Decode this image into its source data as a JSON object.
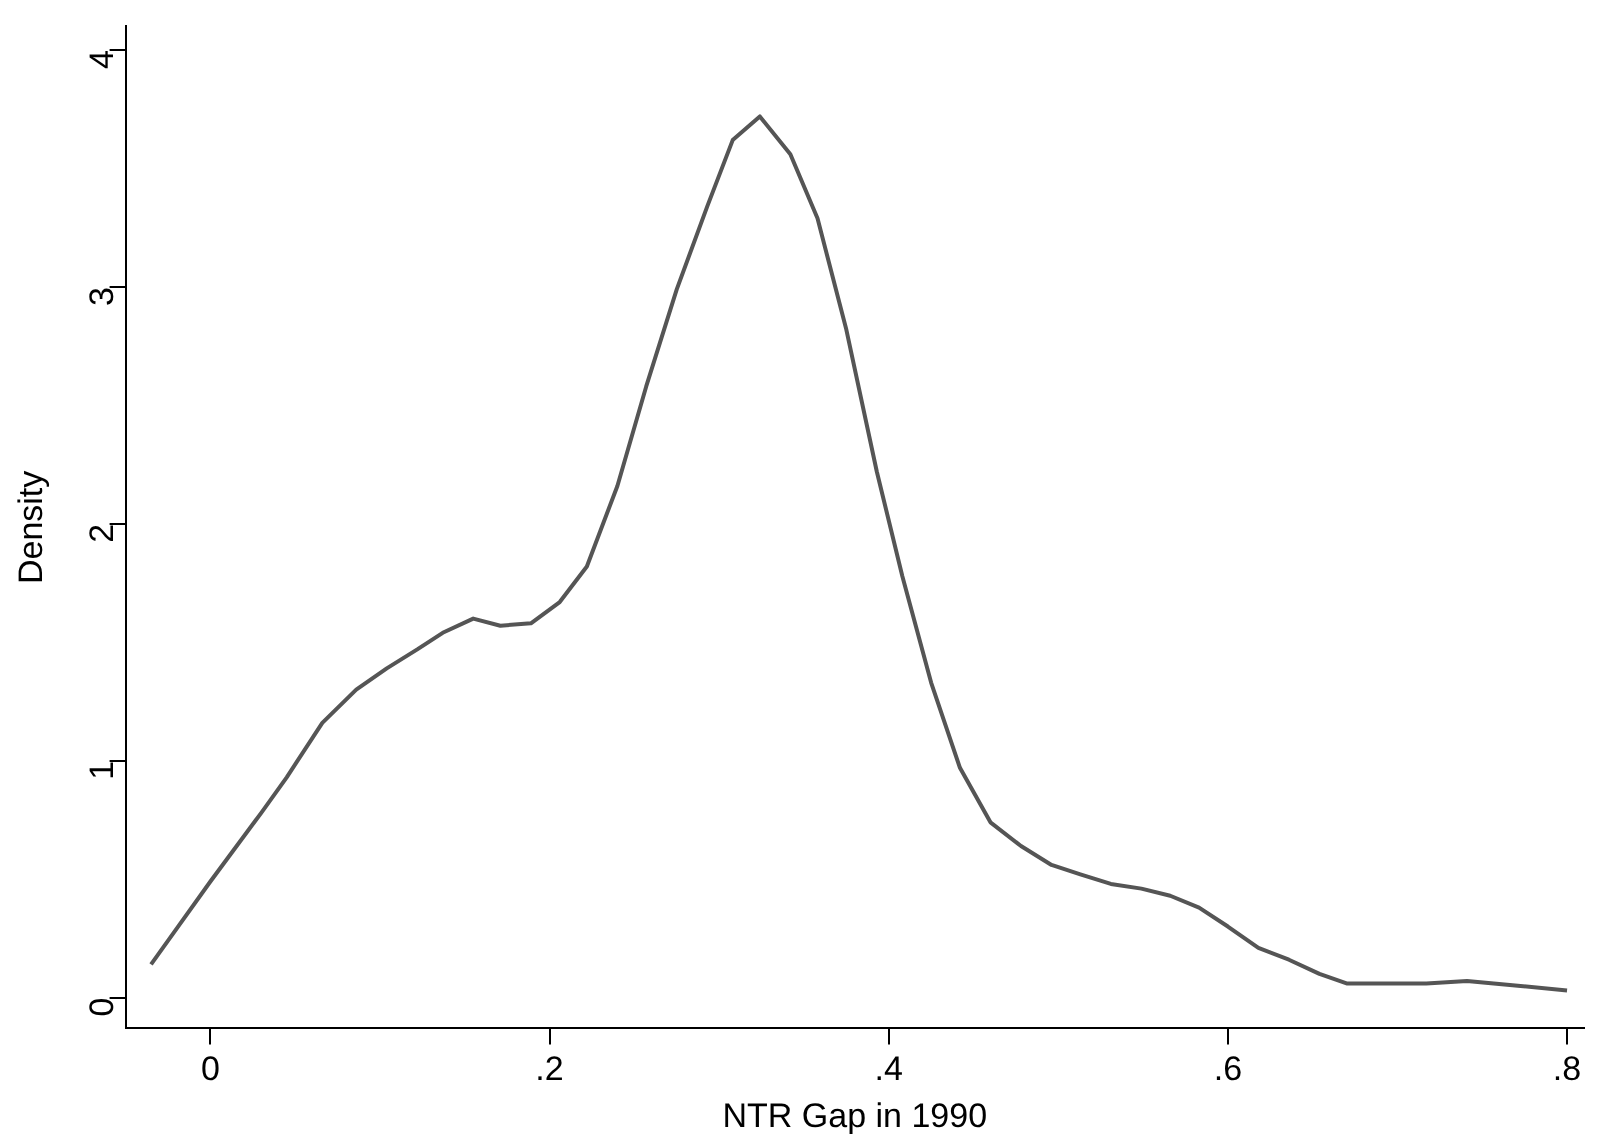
{
  "chart_data": {
    "type": "line",
    "xlabel": "NTR Gap in 1990",
    "ylabel": "Density",
    "x": [
      -0.035,
      -0.02,
      0,
      0.03,
      0.045,
      0.066,
      0.086,
      0.104,
      0.122,
      0.137,
      0.155,
      0.171,
      0.189,
      0.206,
      0.222,
      0.24,
      0.257,
      0.275,
      0.293,
      0.308,
      0.324,
      0.342,
      0.358,
      0.375,
      0.393,
      0.408,
      0.425,
      0.442,
      0.46,
      0.478,
      0.496,
      0.513,
      0.531,
      0.549,
      0.566,
      0.583,
      0.6,
      0.618,
      0.636,
      0.654,
      0.67,
      0.688,
      0.717,
      0.741,
      0.771,
      0.8
    ],
    "series": [
      {
        "color": "#555555",
        "values": [
          0.14,
          0.29,
          0.49,
          0.78,
          0.93,
          1.16,
          1.3,
          1.39,
          1.47,
          1.54,
          1.6,
          1.57,
          1.58,
          1.67,
          1.82,
          2.16,
          2.58,
          2.99,
          3.34,
          3.62,
          3.72,
          3.56,
          3.29,
          2.82,
          2.22,
          1.78,
          1.33,
          0.97,
          0.74,
          0.64,
          0.56,
          0.52,
          0.48,
          0.46,
          0.43,
          0.38,
          0.3,
          0.21,
          0.16,
          0.1,
          0.06,
          0.06,
          0.06,
          0.07,
          0.05,
          0.03
        ]
      }
    ],
    "xlim": [
      -0.05,
      0.81
    ],
    "xticks": [
      {
        "value": 0,
        "label": "0"
      },
      {
        "value": 0.2,
        "label": ".2"
      },
      {
        "value": 0.4,
        "label": ".4"
      },
      {
        "value": 0.6,
        "label": ".6"
      },
      {
        "value": 0.8,
        "label": ".8"
      }
    ],
    "ylim": [
      -0.13,
      4.1
    ],
    "yticks": [
      0,
      1,
      2,
      3,
      4
    ],
    "grid": false,
    "legend": false,
    "marker": "none",
    "line_style": "solid"
  }
}
